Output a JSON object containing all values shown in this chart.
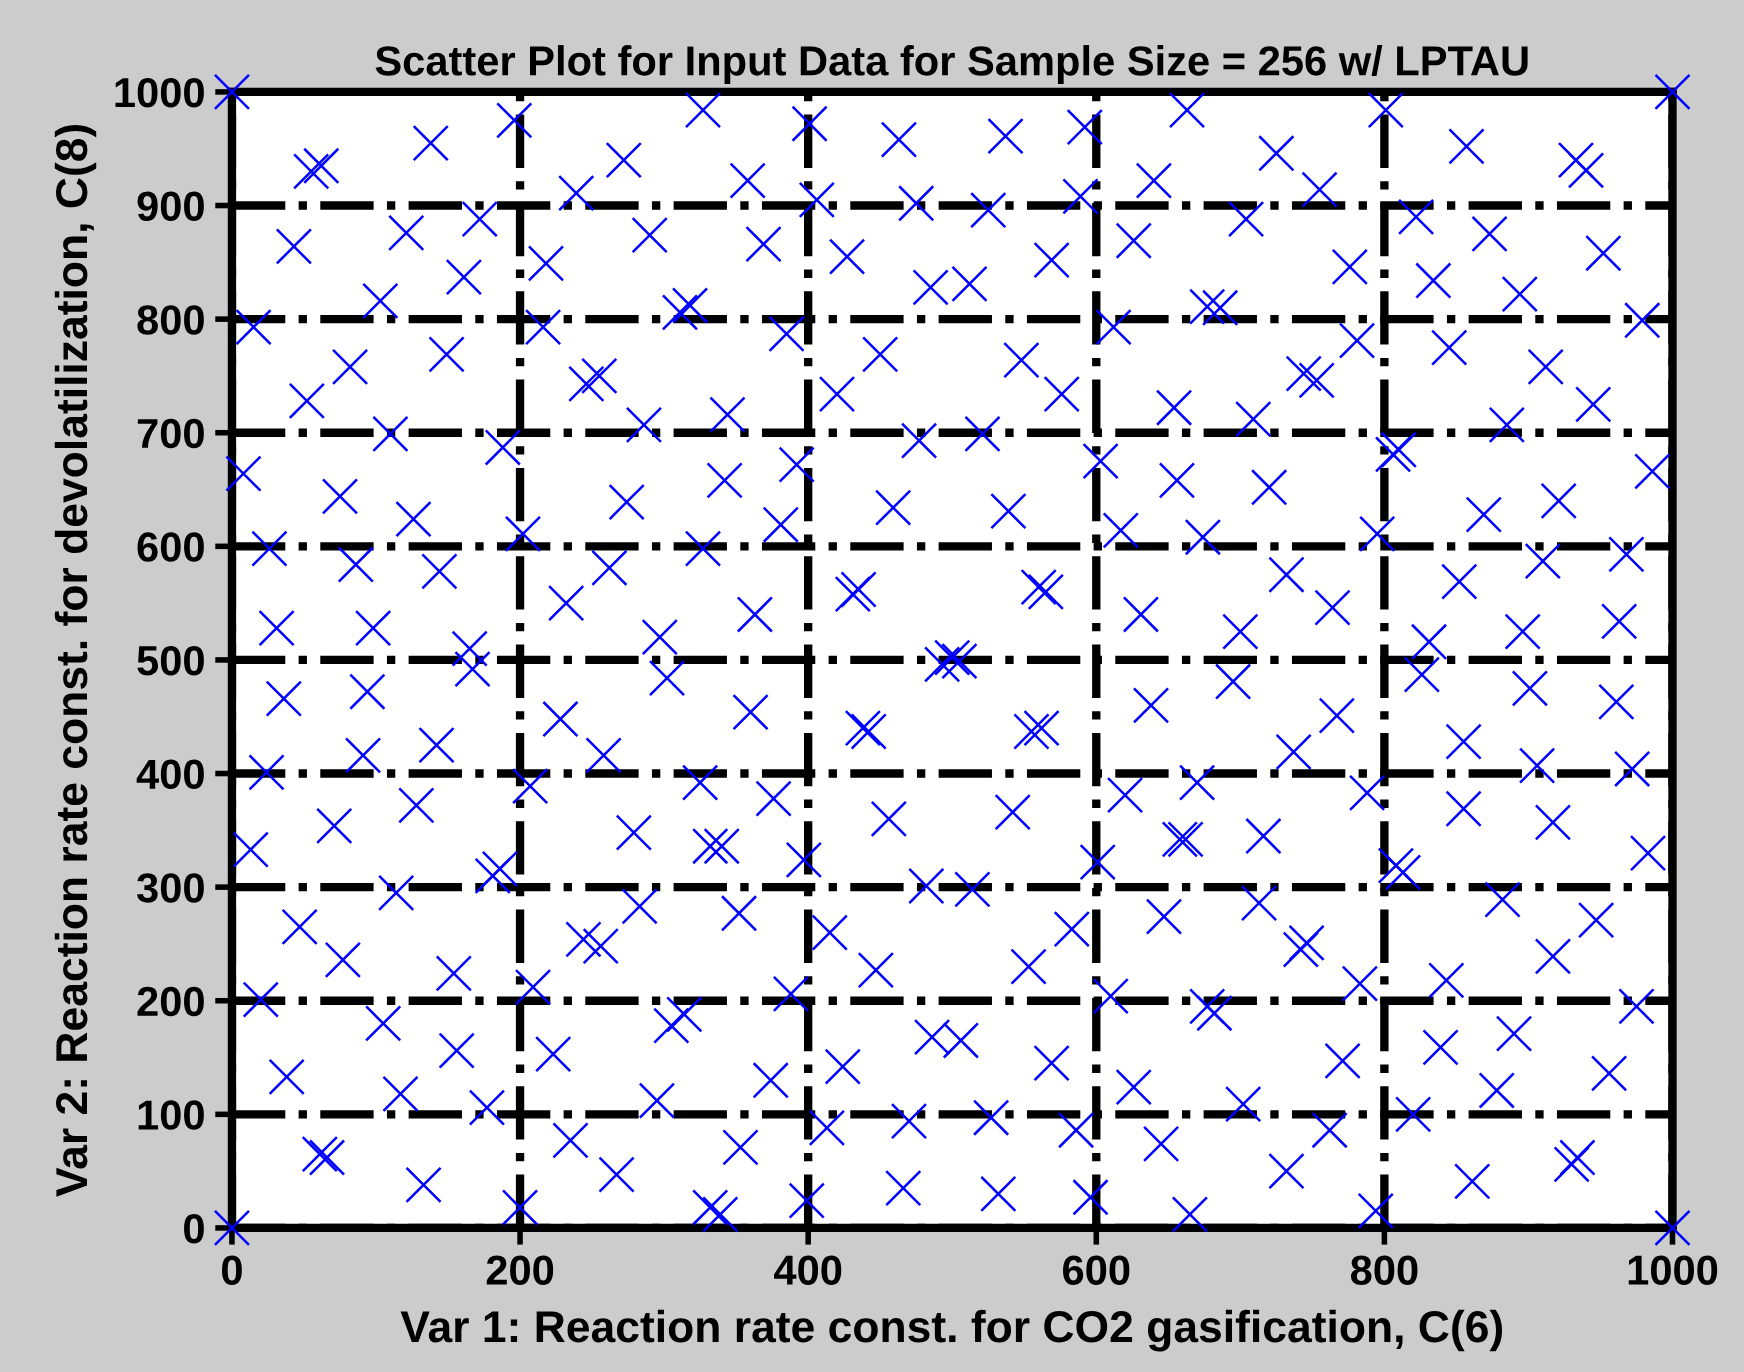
{
  "chart_data": {
    "type": "scatter",
    "title": "Scatter Plot for Input Data for Sample Size = 256 w/ LPTAU",
    "xlabel": "Var 1: Reaction rate const. for CO2 gasification, C(6)",
    "ylabel": "Var 2: Reaction rate const. for devolatilization, C(8)",
    "color": "#0000ff",
    "marker": "cross",
    "grid": true,
    "xlim": [
      0,
      1000
    ],
    "ylim": [
      0,
      1000
    ],
    "xticks": [
      0,
      200,
      400,
      600,
      800,
      1000
    ],
    "yticks": [
      0,
      100,
      200,
      300,
      400,
      500,
      600,
      700,
      800,
      900,
      1000
    ],
    "x": [
      0,
      55,
      62,
      138,
      196,
      43,
      121,
      172,
      161,
      103,
      15,
      149,
      82,
      52,
      246,
      255,
      218,
      216,
      110,
      188,
      8,
      75,
      126,
      26,
      86,
      144,
      31,
      98,
      202,
      272,
      239,
      290,
      311,
      318,
      286,
      274,
      232,
      262,
      327,
      297,
      327,
      165,
      167,
      302,
      36,
      94,
      228,
      24,
      91,
      142,
      207,
      258,
      325,
      128,
      71,
      13,
      279,
      332,
      181,
      186,
      114,
      47,
      77,
      154,
      20,
      209,
      283,
      244,
      256,
      105,
      156,
      305,
      314,
      223,
      38,
      117,
      177,
      295,
      235,
      61,
      66,
      133,
      267,
      0,
      200,
      332,
      401,
      463,
      537,
      592,
      663,
      358,
      406,
      475,
      525,
      589,
      640,
      369,
      427,
      485,
      512,
      569,
      626,
      385,
      450,
      420,
      548,
      576,
      612,
      654,
      344,
      477,
      521,
      342,
      392,
      603,
      656,
      459,
      539,
      381,
      617,
      363,
      431,
      435,
      560,
      565,
      631,
      493,
      500,
      505,
      360,
      438,
      442,
      555,
      562,
      638,
      376,
      456,
      542,
      620,
      658,
      340,
      397,
      482,
      514,
      601,
      352,
      415,
      447,
      553,
      583,
      647,
      388,
      610,
      486,
      506,
      424,
      374,
      569,
      626,
      353,
      413,
      470,
      527,
      586,
      645,
      399,
      466,
      532,
      596,
      339,
      665,
      801,
      1000,
      725,
      857,
      933,
      940,
      755,
      704,
      822,
      873,
      952,
      776,
      834,
      894,
      677,
      686,
      979,
      781,
      845,
      912,
      744,
      753,
      945,
      709,
      885,
      806,
      810,
      986,
      720,
      869,
      921,
      674,
      795,
      732,
      852,
      910,
      968,
      764,
      700,
      896,
      963,
      831,
      695,
      826,
      901,
      961,
      767,
      737,
      855,
      906,
      972,
      670,
      788,
      855,
      917,
      662,
      716,
      983,
      808,
      813,
      713,
      882,
      947,
      746,
      742,
      917,
      783,
      843,
      682,
      677,
      975,
      890,
      839,
      771,
      956,
      878,
      702,
      820,
      762,
      732,
      861,
      930,
      934,
      794,
      1000
    ],
    "values": [
      1000,
      930,
      935,
      955,
      975,
      864,
      876,
      888,
      837,
      816,
      793,
      769,
      758,
      728,
      743,
      750,
      849,
      793,
      699,
      687,
      664,
      644,
      624,
      598,
      584,
      578,
      528,
      528,
      611,
      940,
      911,
      874,
      806,
      812,
      707,
      639,
      550,
      581,
      598,
      520,
      984,
      510,
      492,
      484,
      466,
      472,
      448,
      401,
      416,
      425,
      389,
      416,
      392,
      372,
      354,
      333,
      348,
      336,
      310,
      316,
      295,
      265,
      236,
      224,
      201,
      212,
      283,
      254,
      248,
      180,
      156,
      178,
      188,
      153,
      133,
      118,
      106,
      112,
      77,
      65,
      62,
      38,
      47,
      0,
      18,
      18,
      972,
      958,
      961,
      969,
      984,
      922,
      905,
      902,
      896,
      908,
      922,
      866,
      855,
      828,
      831,
      852,
      869,
      787,
      769,
      734,
      764,
      734,
      793,
      722,
      716,
      693,
      699,
      658,
      672,
      675,
      658,
      634,
      631,
      619,
      614,
      540,
      558,
      562,
      564,
      560,
      540,
      496,
      502,
      499,
      454,
      440,
      437,
      437,
      440,
      460,
      378,
      360,
      366,
      381,
      342,
      336,
      324,
      301,
      298,
      322,
      277,
      260,
      227,
      230,
      263,
      274,
      206,
      204,
      168,
      165,
      142,
      130,
      145,
      124,
      71,
      88,
      94,
      97,
      86,
      74,
      24,
      35,
      30,
      27,
      12,
      12,
      984,
      1000,
      946,
      952,
      940,
      931,
      914,
      888,
      890,
      875,
      858,
      846,
      834,
      822,
      811,
      810,
      799,
      781,
      775,
      758,
      752,
      746,
      725,
      712,
      707,
      681,
      685,
      666,
      652,
      628,
      640,
      608,
      611,
      575,
      569,
      587,
      593,
      546,
      525,
      525,
      534,
      516,
      481,
      487,
      475,
      463,
      451,
      419,
      428,
      407,
      404,
      392,
      383,
      369,
      357,
      342,
      345,
      330,
      319,
      313,
      286,
      289,
      271,
      251,
      245,
      239,
      215,
      218,
      189,
      195,
      195,
      171,
      159,
      147,
      136,
      121,
      109,
      100,
      86,
      50,
      41,
      56,
      62,
      15,
      0
    ]
  }
}
